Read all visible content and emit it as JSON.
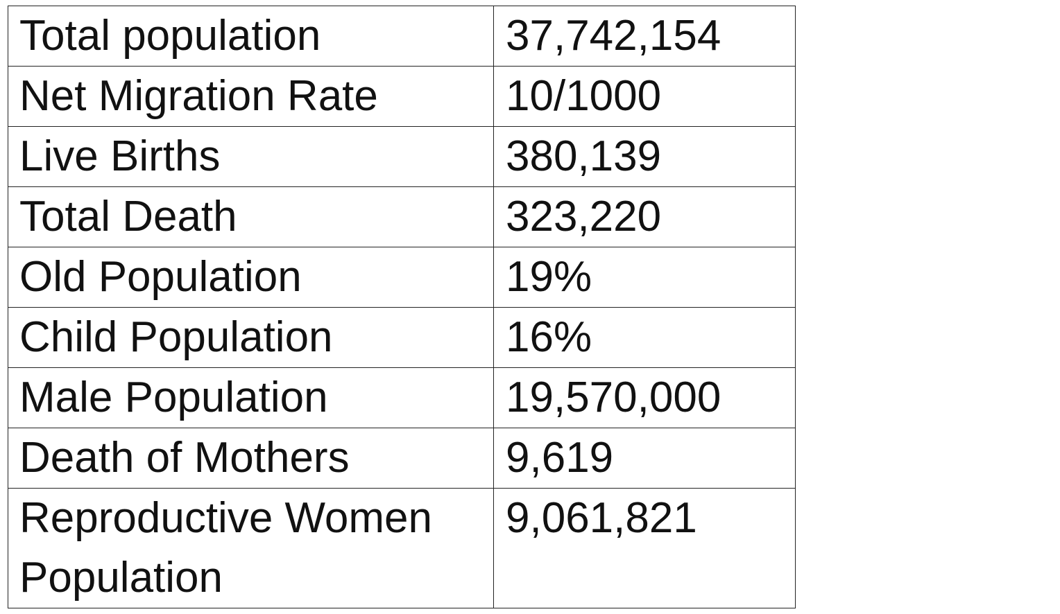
{
  "table": {
    "rows": [
      {
        "label": "Total population",
        "value": "37,742,154"
      },
      {
        "label": "Net Migration Rate",
        "value": "10/1000"
      },
      {
        "label": "Live Births",
        "value": "380,139"
      },
      {
        "label": "Total Death",
        "value": "323,220"
      },
      {
        "label": "Old Population",
        "value": "19%"
      },
      {
        "label": "Child Population",
        "value": "16%"
      },
      {
        "label": "Male Population",
        "value": "19,570,000"
      },
      {
        "label": "Death of Mothers",
        "value": "9,619"
      },
      {
        "label": "Reproductive Women Population",
        "value": "9,061,821"
      }
    ]
  }
}
